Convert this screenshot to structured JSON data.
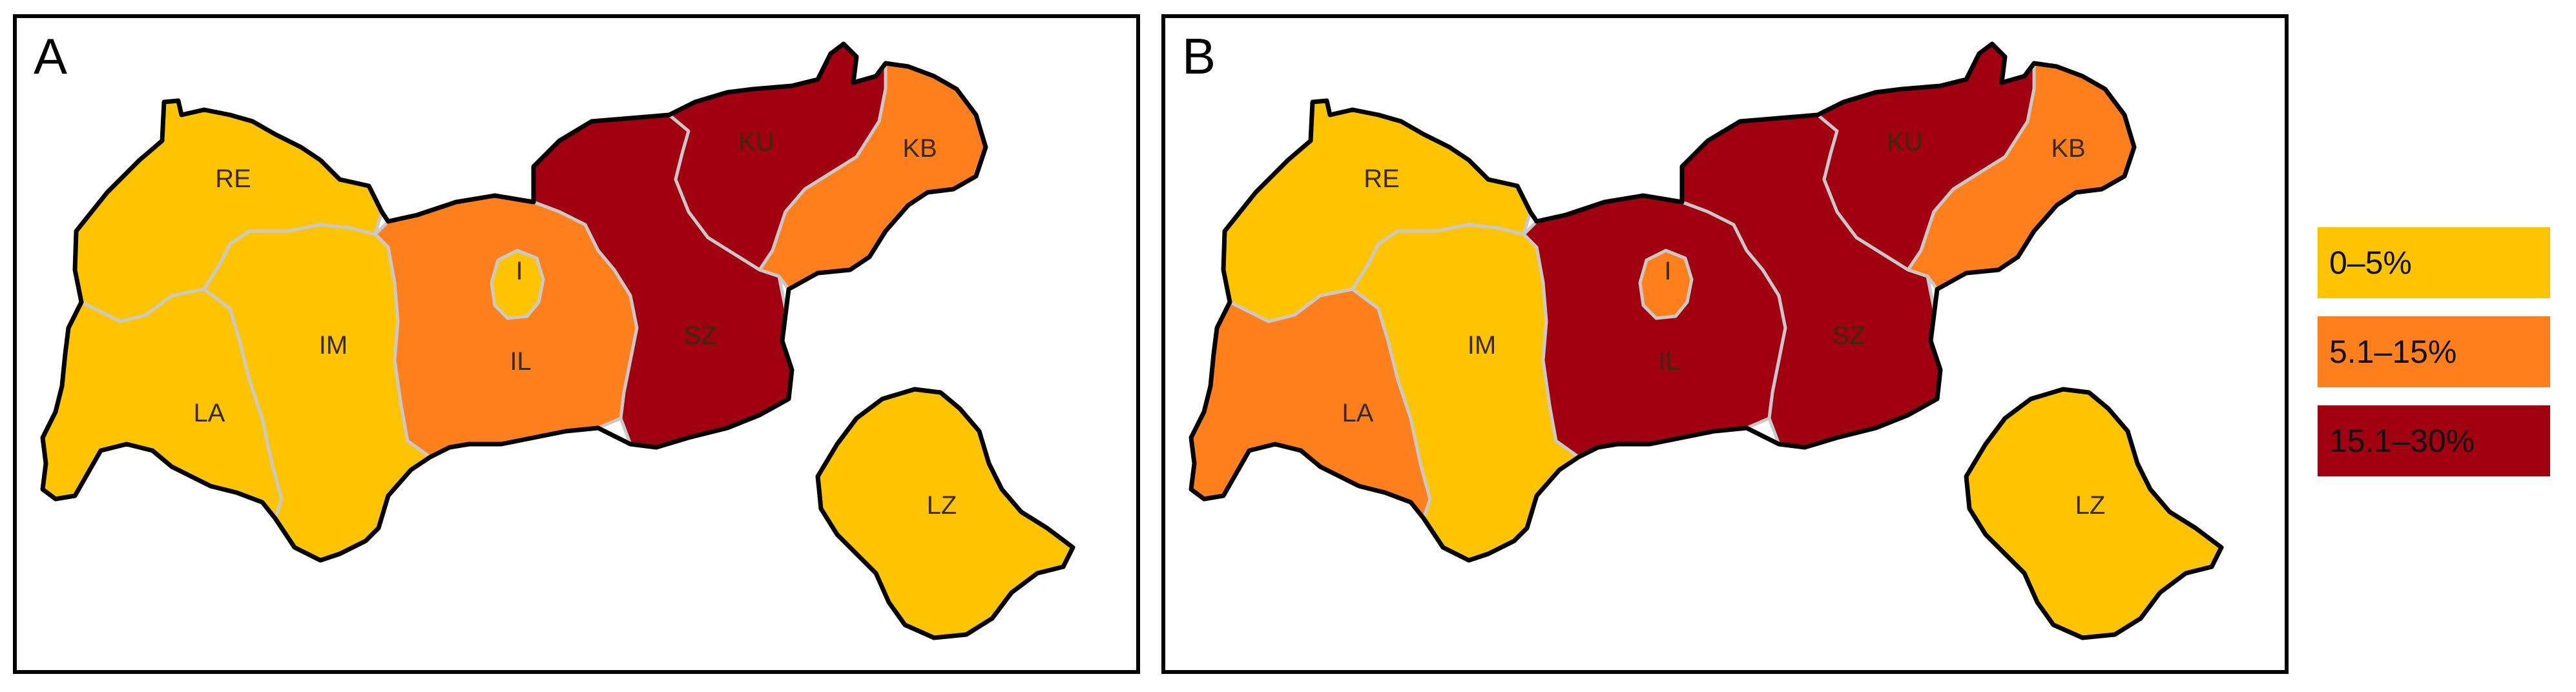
{
  "panels": [
    {
      "id": "A",
      "label": "A",
      "regions": [
        {
          "code": "RE",
          "class": "low"
        },
        {
          "code": "LA",
          "class": "low"
        },
        {
          "code": "IM",
          "class": "low"
        },
        {
          "code": "IL",
          "class": "mid"
        },
        {
          "code": "I",
          "class": "low"
        },
        {
          "code": "SZ",
          "class": "high"
        },
        {
          "code": "KU",
          "class": "high"
        },
        {
          "code": "KB",
          "class": "mid"
        },
        {
          "code": "LZ",
          "class": "low"
        }
      ]
    },
    {
      "id": "B",
      "label": "B",
      "regions": [
        {
          "code": "RE",
          "class": "low"
        },
        {
          "code": "LA",
          "class": "mid"
        },
        {
          "code": "IM",
          "class": "low"
        },
        {
          "code": "IL",
          "class": "high"
        },
        {
          "code": "I",
          "class": "mid"
        },
        {
          "code": "SZ",
          "class": "high"
        },
        {
          "code": "KU",
          "class": "high"
        },
        {
          "code": "KB",
          "class": "mid"
        },
        {
          "code": "LZ",
          "class": "low"
        }
      ]
    }
  ],
  "legend": [
    {
      "class": "low",
      "label": "0–5%",
      "color": "#ffc400"
    },
    {
      "class": "mid",
      "label": "5.1–15%",
      "color": "#ff7f1c"
    },
    {
      "class": "high",
      "label": "15.1–30%",
      "color": "#a00010"
    }
  ]
}
